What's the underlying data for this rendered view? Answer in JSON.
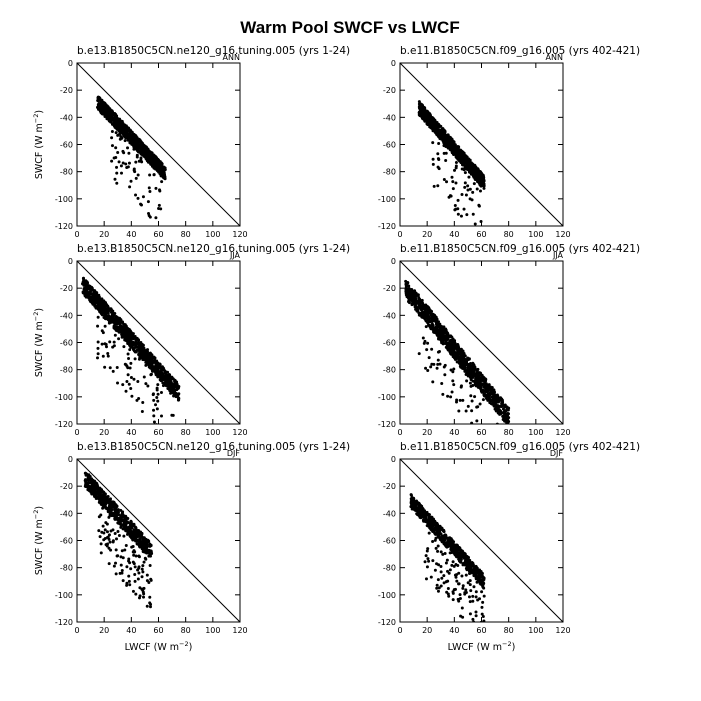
{
  "figure": {
    "title": "Warm Pool SWCF vs LWCF"
  },
  "chart_data": [
    {
      "type": "scatter",
      "title": "b.e13.B1850C5CN.ne120_g16.tuning.005 (yrs 1-24)",
      "season": "ANN",
      "ylabel": "SWCF",
      "xlabel": "",
      "xlim": [
        0,
        120
      ],
      "ylim": [
        -120,
        0
      ],
      "xticks": [
        0,
        20,
        40,
        60,
        80,
        100,
        120
      ],
      "yticks": [
        0,
        -20,
        -40,
        -60,
        -80,
        -100,
        -120
      ],
      "reference_line": {
        "x": [
          0,
          120
        ],
        "y": [
          0,
          -120
        ]
      },
      "points": {
        "count": 900,
        "x_range": [
          15,
          65
        ],
        "slope": -1.05,
        "intercept": -13,
        "spread": 5,
        "outliers": 70
      }
    },
    {
      "type": "scatter",
      "title": "b.e11.B1850C5CN.f09_g16.005 (yrs 402-421)",
      "season": "ANN",
      "ylabel": "",
      "xlabel": "",
      "xlim": [
        0,
        120
      ],
      "ylim": [
        -120,
        0
      ],
      "xticks": [
        0,
        20,
        40,
        60,
        80,
        100,
        120
      ],
      "yticks": [
        0,
        -20,
        -40,
        -60,
        -80,
        -100,
        -120
      ],
      "reference_line": {
        "x": [
          0,
          120
        ],
        "y": [
          0,
          -120
        ]
      },
      "points": {
        "count": 900,
        "x_range": [
          14,
          62
        ],
        "slope": -1.15,
        "intercept": -17,
        "spread": 5,
        "outliers": 60
      }
    },
    {
      "type": "scatter",
      "title": "b.e13.B1850C5CN.ne120_g16.tuning.005 (yrs 1-24)",
      "season": "JJA",
      "ylabel": "SWCF",
      "xlabel": "",
      "xlim": [
        0,
        120
      ],
      "ylim": [
        -120,
        0
      ],
      "xticks": [
        0,
        20,
        40,
        60,
        80,
        100,
        120
      ],
      "yticks": [
        0,
        -20,
        -40,
        -60,
        -80,
        -100,
        -120
      ],
      "reference_line": {
        "x": [
          0,
          120
        ],
        "y": [
          0,
          -120
        ]
      },
      "points": {
        "count": 1000,
        "x_range": [
          4,
          75
        ],
        "slope": -1.12,
        "intercept": -13,
        "spread": 6,
        "outliers": 90
      }
    },
    {
      "type": "scatter",
      "title": "b.e11.B1850C5CN.f09_g16.005 (yrs 402-421)",
      "season": "JJA",
      "ylabel": "",
      "xlabel": "",
      "xlim": [
        0,
        120
      ],
      "ylim": [
        -120,
        0
      ],
      "xticks": [
        0,
        20,
        40,
        60,
        80,
        100,
        120
      ],
      "yticks": [
        0,
        -20,
        -40,
        -60,
        -80,
        -100,
        -120
      ],
      "reference_line": {
        "x": [
          0,
          120
        ],
        "y": [
          0,
          -120
        ]
      },
      "points": {
        "count": 1000,
        "x_range": [
          4,
          80
        ],
        "slope": -1.25,
        "intercept": -15,
        "spread": 7,
        "outliers": 90
      }
    },
    {
      "type": "scatter",
      "title": "b.e13.B1850C5CN.ne120_g16.tuning.005 (yrs 1-24)",
      "season": "DJF",
      "ylabel": "SWCF",
      "xlabel": "LWCF",
      "xlim": [
        0,
        120
      ],
      "ylim": [
        -120,
        0
      ],
      "xticks": [
        0,
        20,
        40,
        60,
        80,
        100,
        120
      ],
      "yticks": [
        0,
        -20,
        -40,
        -60,
        -80,
        -100,
        -120
      ],
      "reference_line": {
        "x": [
          0,
          120
        ],
        "y": [
          0,
          -120
        ]
      },
      "points": {
        "count": 600,
        "x_range": [
          6,
          55
        ],
        "slope": -1.1,
        "intercept": -8,
        "spread": 6,
        "outliers": 120
      }
    },
    {
      "type": "scatter",
      "title": "b.e11.B1850C5CN.f09_g16.005 (yrs 402-421)",
      "season": "DJF",
      "ylabel": "",
      "xlabel": "LWCF",
      "xlim": [
        0,
        120
      ],
      "ylim": [
        -120,
        0
      ],
      "xticks": [
        0,
        20,
        40,
        60,
        80,
        100,
        120
      ],
      "yticks": [
        0,
        -20,
        -40,
        -60,
        -80,
        -100,
        -120
      ],
      "reference_line": {
        "x": [
          0,
          120
        ],
        "y": [
          0,
          -120
        ]
      },
      "points": {
        "count": 600,
        "x_range": [
          8,
          62
        ],
        "slope": -1.1,
        "intercept": -22,
        "spread": 5,
        "outliers": 120
      }
    }
  ]
}
